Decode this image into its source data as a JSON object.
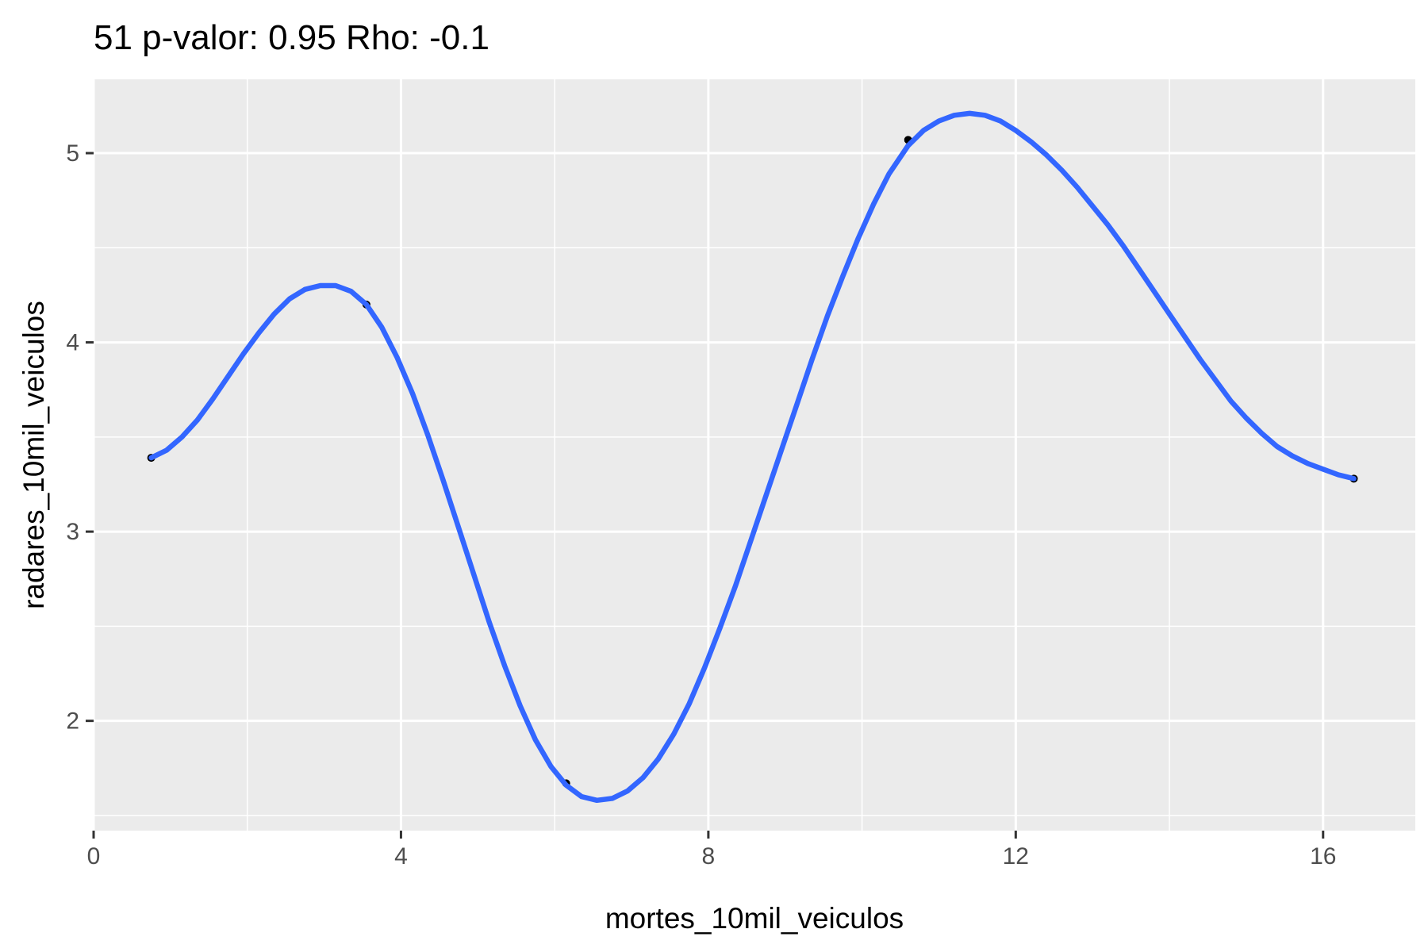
{
  "chart_data": {
    "type": "scatter",
    "title": "51 p-valor: 0.95 Rho: -0.1",
    "xlabel": "mortes_10mil_veiculos",
    "ylabel": "radares_10mil_veiculos",
    "xlim": [
      0,
      17.2
    ],
    "ylim": [
      1.42,
      5.39
    ],
    "x_ticks": [
      0,
      4,
      8,
      12,
      16
    ],
    "y_ticks": [
      2,
      3,
      4,
      5
    ],
    "grid": true,
    "legend": "none",
    "colors": {
      "panel": "#ebebeb",
      "grid": "#ffffff",
      "line": "#3366ff",
      "points": "#000000"
    },
    "series": [
      {
        "kind": "points",
        "x": [
          0.75,
          3.55,
          6.15,
          10.6,
          16.4
        ],
        "y": [
          3.39,
          4.2,
          1.67,
          5.07,
          3.28
        ]
      },
      {
        "kind": "smooth",
        "x": [
          0.75,
          0.95,
          1.15,
          1.35,
          1.55,
          1.75,
          1.95,
          2.15,
          2.35,
          2.55,
          2.75,
          2.95,
          3.15,
          3.35,
          3.55,
          3.75,
          3.95,
          4.15,
          4.35,
          4.55,
          4.75,
          4.95,
          5.15,
          5.35,
          5.55,
          5.75,
          5.95,
          6.15,
          6.35,
          6.55,
          6.75,
          6.95,
          7.15,
          7.35,
          7.55,
          7.75,
          7.95,
          8.15,
          8.35,
          8.55,
          8.75,
          8.95,
          9.15,
          9.35,
          9.55,
          9.75,
          9.95,
          10.15,
          10.35,
          10.6,
          10.8,
          11.0,
          11.2,
          11.4,
          11.6,
          11.8,
          12.0,
          12.2,
          12.4,
          12.6,
          12.8,
          13.0,
          13.2,
          13.4,
          13.6,
          13.8,
          14.0,
          14.2,
          14.4,
          14.6,
          14.8,
          15.0,
          15.2,
          15.4,
          15.6,
          15.8,
          16.0,
          16.2,
          16.4
        ],
        "y": [
          3.39,
          3.43,
          3.5,
          3.59,
          3.7,
          3.82,
          3.94,
          4.05,
          4.15,
          4.23,
          4.28,
          4.3,
          4.3,
          4.27,
          4.2,
          4.08,
          3.92,
          3.73,
          3.51,
          3.27,
          3.02,
          2.77,
          2.52,
          2.29,
          2.08,
          1.9,
          1.76,
          1.66,
          1.6,
          1.58,
          1.59,
          1.63,
          1.7,
          1.8,
          1.93,
          2.09,
          2.28,
          2.49,
          2.71,
          2.95,
          3.19,
          3.43,
          3.67,
          3.91,
          4.14,
          4.35,
          4.55,
          4.73,
          4.89,
          5.04,
          5.12,
          5.17,
          5.2,
          5.21,
          5.2,
          5.17,
          5.12,
          5.06,
          4.99,
          4.91,
          4.82,
          4.72,
          4.62,
          4.51,
          4.39,
          4.27,
          4.15,
          4.03,
          3.91,
          3.8,
          3.69,
          3.6,
          3.52,
          3.45,
          3.4,
          3.36,
          3.33,
          3.3,
          3.28
        ]
      }
    ]
  }
}
